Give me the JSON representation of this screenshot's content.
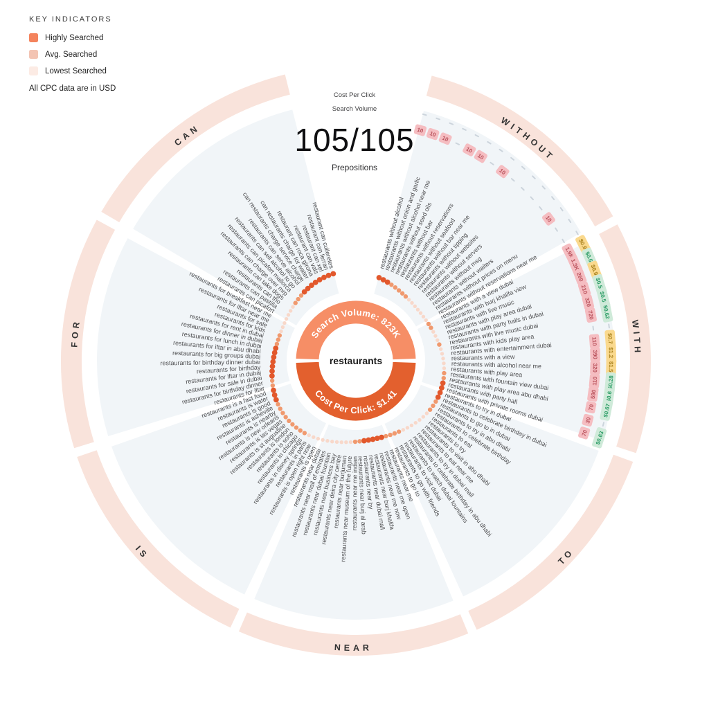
{
  "legend": {
    "title": "KEY INDICATORS",
    "items": [
      {
        "label": "Highly Searched",
        "color": "#f4835d"
      },
      {
        "label": "Avg. Searched",
        "color": "#f3c4b3"
      },
      {
        "label": "Lowest Searched",
        "color": "#fcebe4"
      }
    ],
    "note": "All CPC data are in USD"
  },
  "header": {
    "cpc_axis_label": "Cost Per Click",
    "volume_axis_label": "Search Volume",
    "counter": "105/105",
    "counter_caption": "Prepositions"
  },
  "center": {
    "keyword": "restaurants",
    "volume_arc_label": "Search Volume: 823K",
    "cpc_arc_label": "Cost Per Click: $1.41"
  },
  "chart_data": {
    "type": "radial-keyword-wheel",
    "root_keyword": "restaurants",
    "total_search_volume": "823K",
    "avg_cpc_usd": 1.41,
    "prepositions_counter": "105/105",
    "heat_levels": [
      "low",
      "avg",
      "high"
    ],
    "dot_colors": {
      "low": "#f8d8ca",
      "avg": "#f0996e",
      "high": "#e2582c"
    },
    "badge_colors": {
      "volume_bg": "#f5bdc1",
      "volume_text": "#b9525c",
      "cpc_high_bg": "#fad98e",
      "cpc_high_text": "#a8811c",
      "cpc_low_bg": "#cfead9",
      "cpc_low_text": "#2f9e68"
    },
    "ring_color": "#f9e3db",
    "wedge_color": "#f1f5f8",
    "sections": [
      {
        "preposition": "WITHOUT",
        "keywords": [
          {
            "label": "restaurants without alcohol",
            "volume": "10",
            "cpc": null,
            "heat": 2
          },
          {
            "label": "restaurants without onion and garlic",
            "volume": "10",
            "cpc": null,
            "heat": 2
          },
          {
            "label": "restaurants without alcohol near me",
            "volume": "10",
            "cpc": null,
            "heat": 2
          },
          {
            "label": "restaurants without seed oils",
            "volume": null,
            "cpc": null,
            "heat": 1
          },
          {
            "label": "restaurants without bar",
            "volume": "10",
            "cpc": null,
            "heat": 1
          },
          {
            "label": "restaurants without reservations",
            "volume": "10",
            "cpc": null,
            "heat": 1
          },
          {
            "label": "restaurants without seafood",
            "volume": null,
            "cpc": null,
            "heat": 1
          },
          {
            "label": "restaurants without bar near me",
            "volume": "10",
            "cpc": null,
            "heat": 1
          },
          {
            "label": "restaurants without tipping",
            "volume": null,
            "cpc": null,
            "heat": 0
          },
          {
            "label": "restaurants without websites",
            "volume": null,
            "cpc": null,
            "heat": 0
          },
          {
            "label": "restaurants without servers",
            "volume": null,
            "cpc": null,
            "heat": 0
          },
          {
            "label": "restaurants without msg",
            "volume": null,
            "cpc": null,
            "heat": 0
          },
          {
            "label": "restaurants without waiters",
            "volume": "10",
            "cpc": null,
            "heat": 0
          },
          {
            "label": "restaurants without prices on menu",
            "volume": null,
            "cpc": null,
            "heat": 0
          },
          {
            "label": "restaurants without reservations near me",
            "volume": null,
            "cpc": null,
            "heat": 0
          }
        ]
      },
      {
        "preposition": "WITH",
        "keywords": [
          {
            "label": "restaurants with a view dubai",
            "volume": "1.9K",
            "cpc": "$0.93",
            "cpc_tier": "high",
            "heat": 1
          },
          {
            "label": "restaurants with burj khalifa view",
            "volume": "1.3K",
            "cpc": "$0.65",
            "cpc_tier": "low",
            "heat": 1
          },
          {
            "label": "restaurants with live music",
            "volume": "260",
            "cpc": "$0.98",
            "cpc_tier": "high",
            "heat": 0
          },
          {
            "label": "restaurants with play area dubai",
            "volume": "210",
            "cpc": "$0.54",
            "cpc_tier": "low",
            "heat": 0
          },
          {
            "label": "restaurants with party halls in dubai",
            "volume": "320",
            "cpc": "$0.59",
            "cpc_tier": "low",
            "heat": 0
          },
          {
            "label": "restaurants with live music dubai",
            "volume": "720",
            "cpc": "$0.62",
            "cpc_tier": "low",
            "heat": 1
          },
          {
            "label": "restaurants with kids play area",
            "volume": null,
            "cpc": null,
            "heat": 0
          },
          {
            "label": "restaurants with entertainment dubai",
            "volume": "110",
            "cpc": "$0.78",
            "cpc_tier": "high",
            "heat": 0
          },
          {
            "label": "restaurants with a view",
            "volume": "390",
            "cpc": "$1.22",
            "cpc_tier": "high",
            "heat": 0
          },
          {
            "label": "restaurants with alcohol near me",
            "volume": "320",
            "cpc": "$1.56",
            "cpc_tier": "high",
            "heat": 0
          },
          {
            "label": "restaurants with play area",
            "volume": "110",
            "cpc": "$0.28",
            "cpc_tier": "low",
            "heat": 0
          },
          {
            "label": "restaurants with fountain view dubai",
            "volume": "590",
            "cpc": "$0.6",
            "cpc_tier": "low",
            "heat": 1
          },
          {
            "label": "restaurants with play area abu dhabi",
            "volume": "70",
            "cpc": "$0.67",
            "cpc_tier": "low",
            "heat": 1
          },
          {
            "label": "restaurants with party hall",
            "volume": "30",
            "cpc": null,
            "heat": 2
          },
          {
            "label": "restaurants with private rooms dubai",
            "volume": "70",
            "cpc": "$0.63",
            "cpc_tier": "low",
            "heat": 2
          }
        ]
      },
      {
        "preposition": "TO",
        "keywords": [
          {
            "label": "restaurants to try in dubai",
            "volume": null,
            "cpc": null,
            "heat": 2
          },
          {
            "label": "restaurants to celebrate birthday in dubai",
            "volume": null,
            "cpc": null,
            "heat": 2
          },
          {
            "label": "restaurants to go to in dubai",
            "volume": null,
            "cpc": null,
            "heat": 1
          },
          {
            "label": "restaurants to try in abu dhabi",
            "volume": null,
            "cpc": null,
            "heat": 1
          },
          {
            "label": "restaurants to celebrate birthday",
            "volume": null,
            "cpc": null,
            "heat": 1
          },
          {
            "label": "restaurants to eat",
            "volume": null,
            "cpc": null,
            "heat": 0
          },
          {
            "label": "restaurants to try",
            "volume": null,
            "cpc": null,
            "heat": 0
          },
          {
            "label": "restaurants to visit in abu dhabi",
            "volume": null,
            "cpc": null,
            "heat": 0
          },
          {
            "label": "restaurants to eat near me",
            "volume": null,
            "cpc": null,
            "heat": 0
          },
          {
            "label": "restaurants to try in dubai mall",
            "volume": null,
            "cpc": null,
            "heat": 0
          },
          {
            "label": "restaurants to celebrate birthday in abu dhabi",
            "volume": null,
            "cpc": null,
            "heat": 0
          },
          {
            "label": "restaurants to watch dubai fountains",
            "volume": null,
            "cpc": null,
            "heat": 0
          },
          {
            "label": "restaurants to visit dubai",
            "volume": null,
            "cpc": null,
            "heat": 1
          },
          {
            "label": "restaurants to go with friends",
            "volume": null,
            "cpc": null,
            "heat": 1
          },
          {
            "label": "restaurants to go to",
            "volume": null,
            "cpc": null,
            "heat": 1
          }
        ]
      },
      {
        "preposition": "NEAR",
        "keywords": [
          {
            "label": "restaurants near me",
            "volume": null,
            "cpc": null,
            "heat": 1
          },
          {
            "label": "restaurants near me open",
            "volume": null,
            "cpc": null,
            "heat": 2
          },
          {
            "label": "restaurants near me now",
            "volume": null,
            "cpc": null,
            "heat": 2
          },
          {
            "label": "restaurants near burj khalifa",
            "volume": null,
            "cpc": null,
            "heat": 2
          },
          {
            "label": "restaurants near dubai mall",
            "volume": null,
            "cpc": null,
            "heat": 2
          },
          {
            "label": "restaurants near by",
            "volume": null,
            "cpc": null,
            "heat": 2
          },
          {
            "label": "restaurants near burj al arab",
            "volume": null,
            "cpc": null,
            "heat": 1
          },
          {
            "label": "restaurants near me indian",
            "volume": null,
            "cpc": null,
            "heat": 1
          },
          {
            "label": "restaurants near museum of the future",
            "volume": null,
            "cpc": null,
            "heat": 0
          },
          {
            "label": "restaurants near burjuman",
            "volume": null,
            "cpc": null,
            "heat": 0
          },
          {
            "label": "restaurants near deira city centre",
            "volume": null,
            "cpc": null,
            "heat": 0
          },
          {
            "label": "restaurants near business bay",
            "volume": null,
            "cpc": null,
            "heat": 0
          },
          {
            "label": "restaurants near dubai fountain",
            "volume": null,
            "cpc": null,
            "heat": 0
          },
          {
            "label": "restaurants near mall of emirates",
            "volume": null,
            "cpc": null,
            "heat": 0
          },
          {
            "label": "restaurants near dubai",
            "volume": null,
            "cpc": null,
            "heat": 0
          }
        ]
      },
      {
        "preposition": "IS",
        "keywords": [
          {
            "label": "restaurants is open",
            "volume": null,
            "cpc": null,
            "heat": 0
          },
          {
            "label": "restaurants is open right now",
            "volume": null,
            "cpc": null,
            "heat": 0
          },
          {
            "label": "restaurants in paris",
            "volume": null,
            "cpc": null,
            "heat": 0
          },
          {
            "label": "restaurants in disney springs",
            "volume": null,
            "cpc": null,
            "heat": 1
          },
          {
            "label": "restaurants in chicago",
            "volume": null,
            "cpc": null,
            "heat": 1
          },
          {
            "label": "restaurants is soho",
            "volume": null,
            "cpc": null,
            "heat": 1
          },
          {
            "label": "restaurants is london",
            "volume": null,
            "cpc": null,
            "heat": 1
          },
          {
            "label": "restaurants is st augustine",
            "volume": null,
            "cpc": null,
            "heat": 1
          },
          {
            "label": "restaurants is las vegas",
            "volume": null,
            "cpc": null,
            "heat": 1
          },
          {
            "label": "restaurants is new orleans",
            "volume": null,
            "cpc": null,
            "heat": 1
          },
          {
            "label": "restaurants is nearby",
            "volume": null,
            "cpc": null,
            "heat": 1
          },
          {
            "label": "restaurants is asheville",
            "volume": null,
            "cpc": null,
            "heat": 1
          },
          {
            "label": "restaurants is good",
            "volume": null,
            "cpc": null,
            "heat": 2
          },
          {
            "label": "restaurants is water",
            "volume": null,
            "cpc": null,
            "heat": 2
          },
          {
            "label": "restaurants is a fast food",
            "volume": null,
            "cpc": null,
            "heat": 2
          }
        ]
      },
      {
        "preposition": "FOR",
        "keywords": [
          {
            "label": "restaurants for iftar",
            "volume": null,
            "cpc": null,
            "heat": 1
          },
          {
            "label": "restaurants for birthday dinner",
            "volume": null,
            "cpc": null,
            "heat": 1
          },
          {
            "label": "restaurants for sale in dubai",
            "volume": null,
            "cpc": null,
            "heat": 2
          },
          {
            "label": "restaurants for iftar in dubai",
            "volume": null,
            "cpc": null,
            "heat": 2
          },
          {
            "label": "restaurants for birthday",
            "volume": null,
            "cpc": null,
            "heat": 2
          },
          {
            "label": "restaurants for birthday dinner dubai",
            "volume": null,
            "cpc": null,
            "heat": 2
          },
          {
            "label": "restaurants for big groups dubai",
            "volume": null,
            "cpc": null,
            "heat": 2
          },
          {
            "label": "restaurants for iftar in abu dhabi",
            "volume": null,
            "cpc": null,
            "heat": 2
          },
          {
            "label": "restaurants for lunch in dubai",
            "volume": null,
            "cpc": null,
            "heat": 2
          },
          {
            "label": "restaurants for dinner in dubai",
            "volume": null,
            "cpc": null,
            "heat": 1
          },
          {
            "label": "restaurants for rent in dubai",
            "volume": null,
            "cpc": null,
            "heat": 1
          },
          {
            "label": "restaurants for kids",
            "volume": null,
            "cpc": null,
            "heat": 1
          },
          {
            "label": "restaurants for sale",
            "volume": null,
            "cpc": null,
            "heat": 0
          },
          {
            "label": "restaurants for iftar near me",
            "volume": null,
            "cpc": null,
            "heat": 0
          },
          {
            "label": "restaurants for breakfast near me",
            "volume": null,
            "cpc": null,
            "heat": 0
          }
        ]
      },
      {
        "preposition": "CAN",
        "keywords": [
          {
            "label": "restaurants can picafort",
            "volume": null,
            "cpc": null,
            "heat": 0
          },
          {
            "label": "restaurants can pastilla",
            "volume": null,
            "cpc": null,
            "heat": 0
          },
          {
            "label": "restaurants can tho",
            "volume": null,
            "cpc": null,
            "heat": 0
          },
          {
            "label": "restaurants can take dogs",
            "volume": null,
            "cpc": null,
            "heat": 0
          },
          {
            "label": "restaurants can charge over mrp",
            "volume": null,
            "cpc": null,
            "heat": 1
          },
          {
            "label": "restaurants can picafort mallorca",
            "volume": null,
            "cpc": null,
            "heat": 1
          },
          {
            "label": "restaurants can sell alcohol to go",
            "volume": null,
            "cpc": null,
            "heat": 1
          },
          {
            "label": "restaurants can serve alcohol",
            "volume": null,
            "cpc": null,
            "heat": 2
          },
          {
            "label": "can restaurants charge service charge",
            "volume": null,
            "cpc": null,
            "heat": 2
          },
          {
            "label": "can restaurants charge for water",
            "volume": null,
            "cpc": null,
            "heat": 2
          },
          {
            "label": "restaurant can roca girona",
            "volume": null,
            "cpc": null,
            "heat": 2
          },
          {
            "label": "restaurant can vals",
            "volume": null,
            "cpc": null,
            "heat": 2
          },
          {
            "label": "restaurant can xel",
            "volume": null,
            "cpc": null,
            "heat": 2
          },
          {
            "label": "restaurant can ferran",
            "volume": null,
            "cpc": null,
            "heat": 2
          },
          {
            "label": "restaurant can culleretes",
            "volume": null,
            "cpc": null,
            "heat": 2
          }
        ]
      }
    ]
  }
}
